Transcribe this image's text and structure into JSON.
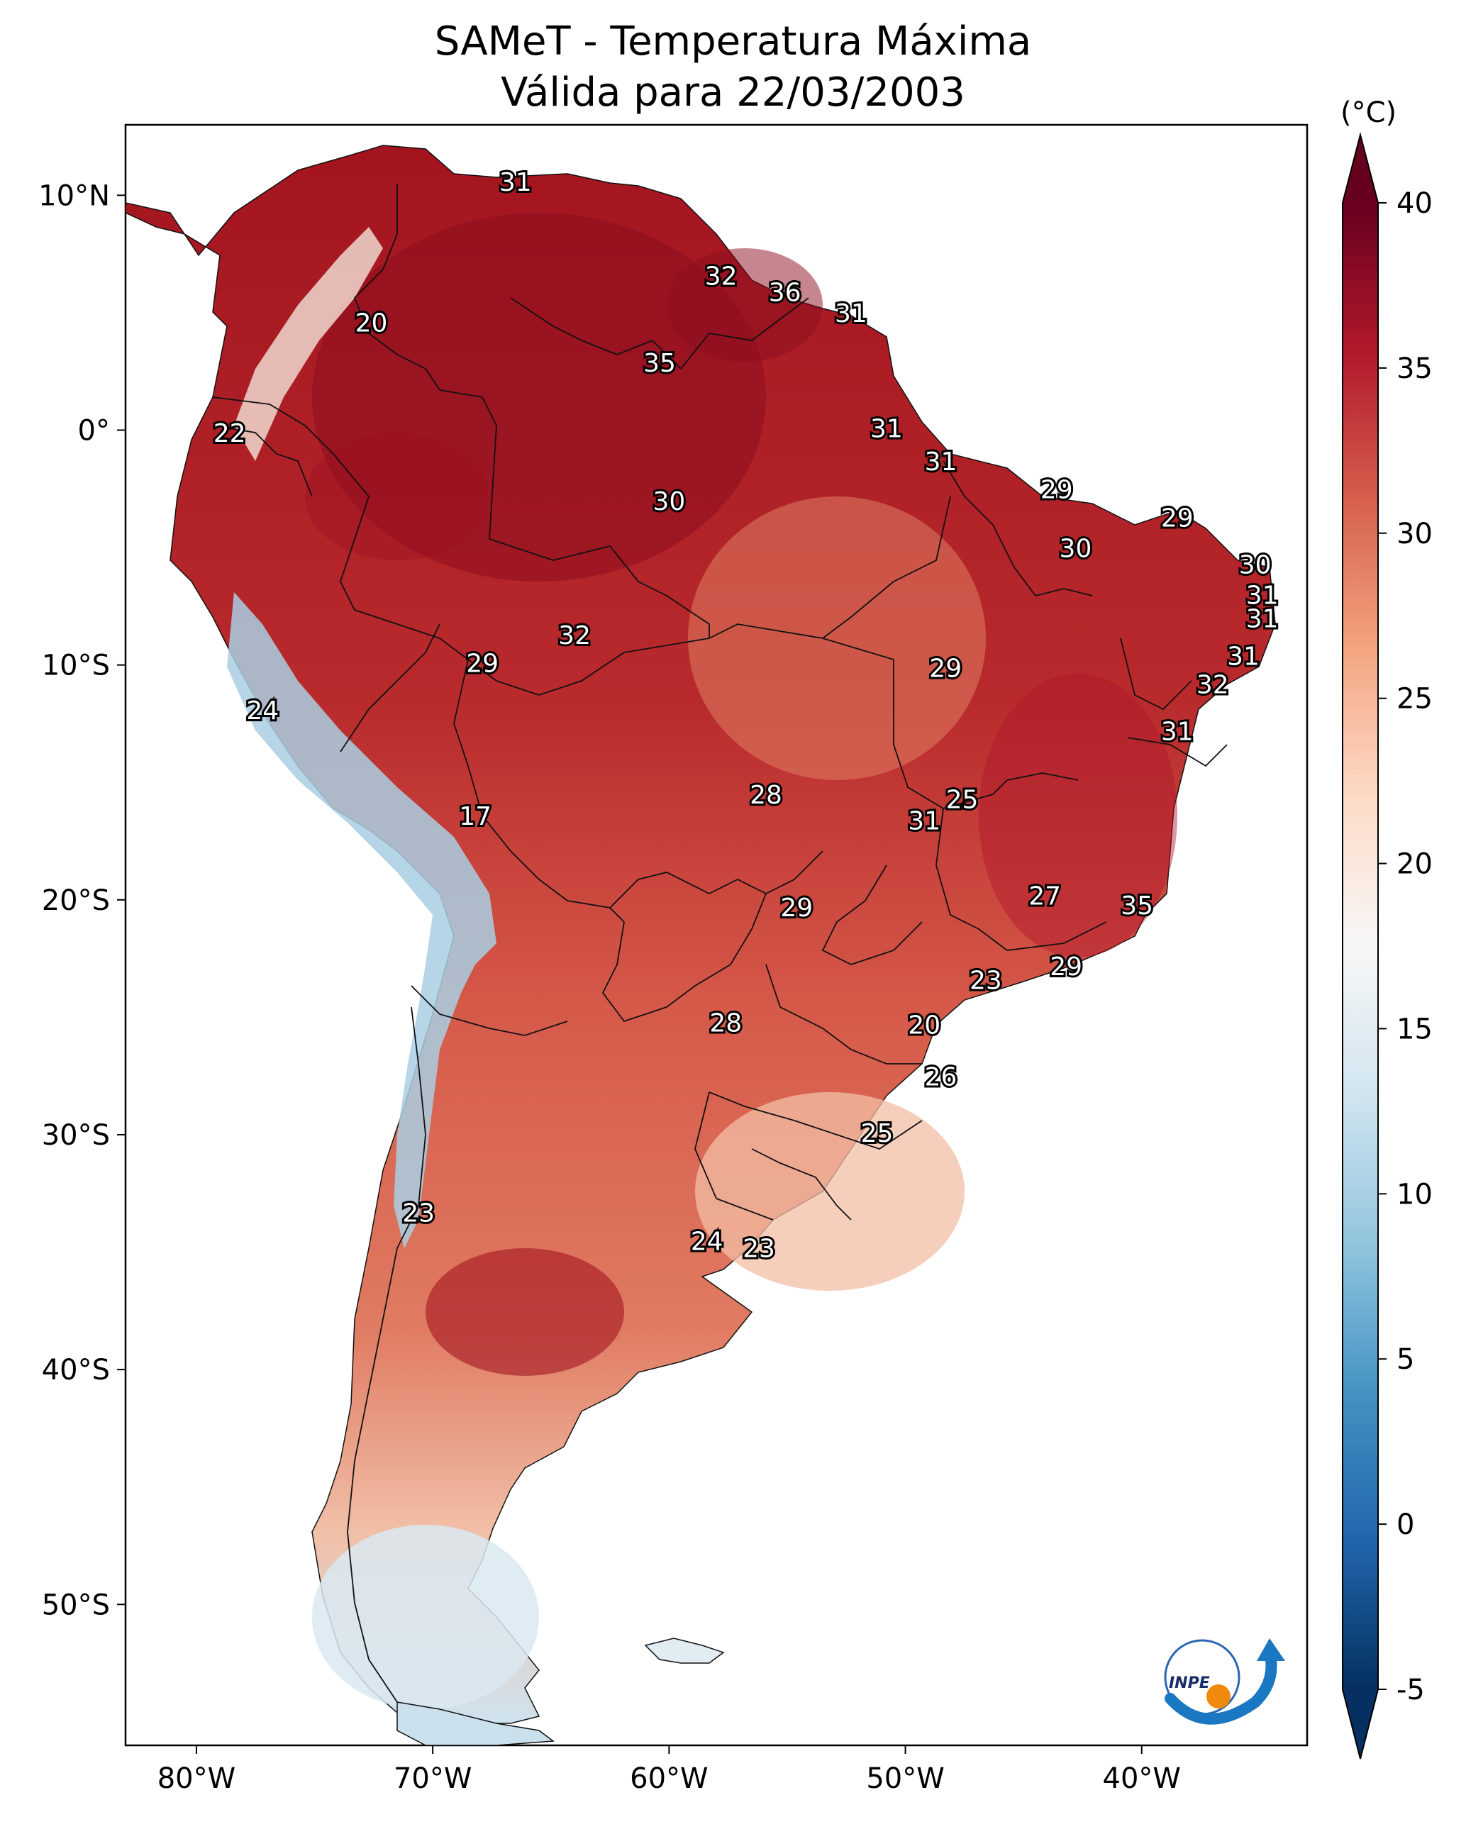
{
  "title": {
    "line1": "SAMeT - Temperatura Máxima",
    "line2": "Válida para 22/03/2003"
  },
  "map": {
    "lon_range": [
      -83,
      -33
    ],
    "lat_range": [
      -56,
      13
    ],
    "x_ticks": [
      {
        "lon": -80,
        "label": "80°W"
      },
      {
        "lon": -70,
        "label": "70°W"
      },
      {
        "lon": -60,
        "label": "60°W"
      },
      {
        "lon": -50,
        "label": "50°W"
      },
      {
        "lon": -40,
        "label": "40°W"
      }
    ],
    "y_ticks": [
      {
        "lat": 10,
        "label": "10°N"
      },
      {
        "lat": 0,
        "label": "0°"
      },
      {
        "lat": -10,
        "label": "10°S"
      },
      {
        "lat": -20,
        "label": "20°S"
      },
      {
        "lat": -30,
        "label": "30°S"
      },
      {
        "lat": -40,
        "label": "40°S"
      },
      {
        "lat": -50,
        "label": "50°S"
      }
    ],
    "station_values": [
      {
        "lon": -66.5,
        "lat": 10.5,
        "value": "31"
      },
      {
        "lon": -57.8,
        "lat": 6.5,
        "value": "32"
      },
      {
        "lon": -55.1,
        "lat": 5.8,
        "value": "36"
      },
      {
        "lon": -52.3,
        "lat": 4.9,
        "value": "31"
      },
      {
        "lon": -72.6,
        "lat": 4.5,
        "value": "20"
      },
      {
        "lon": -60.4,
        "lat": 2.8,
        "value": "35"
      },
      {
        "lon": -78.6,
        "lat": -0.2,
        "value": "22"
      },
      {
        "lon": -50.8,
        "lat": 0.0,
        "value": "31"
      },
      {
        "lon": -48.5,
        "lat": -1.4,
        "value": "31"
      },
      {
        "lon": -43.6,
        "lat": -2.6,
        "value": "29"
      },
      {
        "lon": -60.0,
        "lat": -3.1,
        "value": "30"
      },
      {
        "lon": -38.5,
        "lat": -3.8,
        "value": "29"
      },
      {
        "lon": -42.8,
        "lat": -5.1,
        "value": "30"
      },
      {
        "lon": -35.2,
        "lat": -5.8,
        "value": "30"
      },
      {
        "lon": -34.9,
        "lat": -7.1,
        "value": "31"
      },
      {
        "lon": -34.9,
        "lat": -8.1,
        "value": "31"
      },
      {
        "lon": -64.0,
        "lat": -8.8,
        "value": "32"
      },
      {
        "lon": -67.9,
        "lat": -10.0,
        "value": "29"
      },
      {
        "lon": -48.3,
        "lat": -10.2,
        "value": "29"
      },
      {
        "lon": -35.7,
        "lat": -9.7,
        "value": "31"
      },
      {
        "lon": -37.0,
        "lat": -10.9,
        "value": "32"
      },
      {
        "lon": -77.2,
        "lat": -12.0,
        "value": "24"
      },
      {
        "lon": -38.5,
        "lat": -12.9,
        "value": "31"
      },
      {
        "lon": -68.2,
        "lat": -16.5,
        "value": "17"
      },
      {
        "lon": -55.9,
        "lat": -15.6,
        "value": "28"
      },
      {
        "lon": -47.6,
        "lat": -15.8,
        "value": "25"
      },
      {
        "lon": -49.2,
        "lat": -16.7,
        "value": "31"
      },
      {
        "lon": -44.1,
        "lat": -19.9,
        "value": "27"
      },
      {
        "lon": -54.6,
        "lat": -20.4,
        "value": "29"
      },
      {
        "lon": -40.2,
        "lat": -20.3,
        "value": "35"
      },
      {
        "lon": -43.2,
        "lat": -22.9,
        "value": "29"
      },
      {
        "lon": -46.6,
        "lat": -23.5,
        "value": "23"
      },
      {
        "lon": -57.6,
        "lat": -25.3,
        "value": "28"
      },
      {
        "lon": -49.2,
        "lat": -25.4,
        "value": "20"
      },
      {
        "lon": -48.5,
        "lat": -27.6,
        "value": "26"
      },
      {
        "lon": -51.2,
        "lat": -30.0,
        "value": "25"
      },
      {
        "lon": -70.6,
        "lat": -33.4,
        "value": "23"
      },
      {
        "lon": -58.4,
        "lat": -34.6,
        "value": "24"
      },
      {
        "lon": -56.2,
        "lat": -34.9,
        "value": "23"
      }
    ]
  },
  "colorbar": {
    "unit_label": "(°C)",
    "vmin": -5,
    "vmax": 40,
    "ticks": [
      "40",
      "35",
      "30",
      "25",
      "20",
      "15",
      "10",
      "5",
      "0",
      "-5"
    ],
    "colors": [
      "#053061",
      "#2166ac",
      "#4393c3",
      "#92c5de",
      "#d1e5f0",
      "#f7f7f7",
      "#fddbc7",
      "#f4a582",
      "#d6604d",
      "#b2182b",
      "#67001f"
    ]
  },
  "logo": {
    "text": "INPE"
  }
}
